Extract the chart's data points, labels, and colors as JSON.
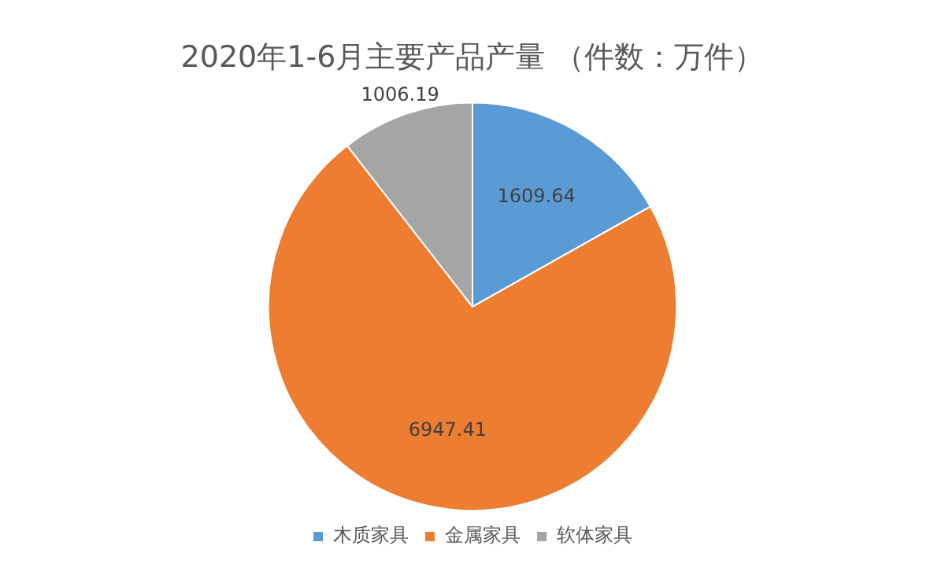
{
  "chart_data": {
    "type": "pie",
    "title": "2020年1-6月主要产品产量 （件数：万件）",
    "categories": [
      "木质家具",
      "金属家具",
      "软体家具"
    ],
    "values": [
      1609.64,
      6947.41,
      1006.19
    ],
    "colors": [
      "#5b9bd5",
      "#ed7d31",
      "#a5a5a5"
    ],
    "data_labels": true,
    "legend": "bottom"
  }
}
